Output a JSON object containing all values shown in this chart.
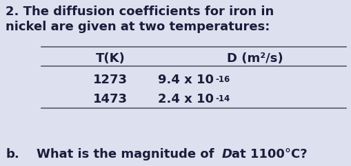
{
  "background_color": "#dce0ef",
  "title_line1": "2. The diffusion coefficients for iron in",
  "title_line2": "nickel are given at two temperatures:",
  "col1_header": "T(K)",
  "col2_header": "D (m²/s)",
  "row1_col1": "1273",
  "row1_col2_base": "9.4 x 10",
  "row1_col2_exp": "-16",
  "row2_col1": "1473",
  "row2_col2_base": "2.4 x 10",
  "row2_col2_exp": "-14",
  "footer_b": "b.",
  "footer_mid": "    What is the magnitude of ",
  "footer_italic": "D",
  "footer_end": "at 1100°C?",
  "text_color": "#1c1c3a",
  "line_color": "#5a5a6a",
  "title_fontsize": 13.0,
  "table_fontsize": 13.0,
  "footer_fontsize": 13.0,
  "sup_fontsize": 8.5
}
